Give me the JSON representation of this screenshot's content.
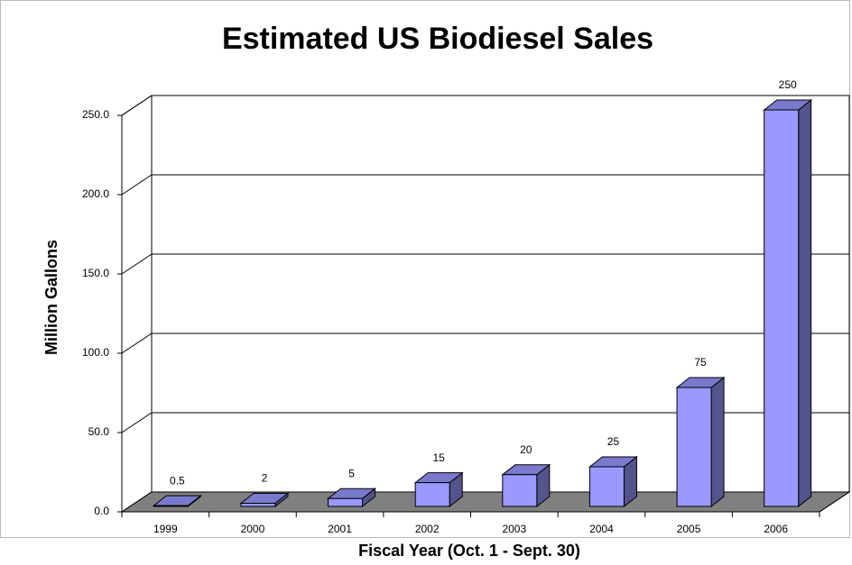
{
  "chart_data": {
    "type": "bar3d",
    "title": "Estimated US Biodiesel Sales",
    "x_label": "Fiscal Year (Oct. 1 - Sept. 30)",
    "y_label": "Million Gallons",
    "categories": [
      "1999",
      "2000",
      "2001",
      "2002",
      "2003",
      "2004",
      "2005",
      "2006"
    ],
    "values": [
      0.5,
      2,
      5,
      15,
      20,
      25,
      75,
      250
    ],
    "color": "#9999ff",
    "ylim": [
      0,
      250
    ],
    "yticks": [
      {
        "value": 0,
        "label": "0.0"
      },
      {
        "value": 50,
        "label": "50.0"
      },
      {
        "value": 100,
        "label": "100.0"
      },
      {
        "value": 150,
        "label": "150.0"
      },
      {
        "value": 200,
        "label": "200.0"
      },
      {
        "value": 250,
        "label": "250.0"
      }
    ],
    "grid": true
  }
}
